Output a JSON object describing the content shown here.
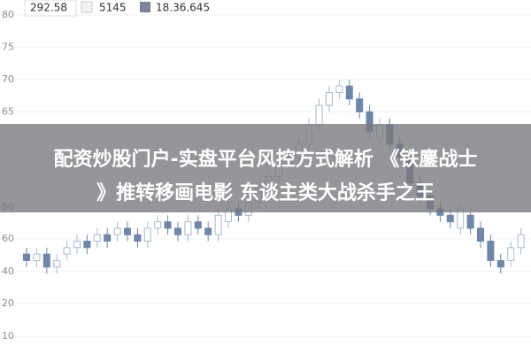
{
  "legend": [
    "292.58",
    "5145",
    "18.36.645"
  ],
  "banner": {
    "line1": "配资炒股门户-实盘平台风控方式解析 《铁鏖战士",
    "line2": "》推转移画电影 东谈主类大战杀手之王"
  },
  "lower_axis_labels": [
    "80",
    "60",
    "40",
    "20",
    "10"
  ],
  "chart_data": {
    "type": "candlestick",
    "ylim": [
      38.5,
      82.3
    ],
    "yticks": [
      80,
      75,
      70,
      65
    ],
    "up_color": "#a9b8cf",
    "down_color": "#6f86a8",
    "open": [
      43,
      42,
      43,
      41,
      43,
      44,
      45,
      45,
      46,
      46,
      47,
      46,
      45,
      47,
      48,
      47,
      46,
      48,
      47,
      46,
      48,
      50,
      49,
      51,
      53,
      55,
      57,
      58,
      60,
      63,
      66,
      68,
      69,
      67,
      65,
      61,
      63,
      60,
      58,
      54,
      52,
      50,
      49,
      47,
      49,
      47,
      45,
      42,
      42,
      44
    ],
    "close": [
      42,
      43,
      41,
      42,
      44,
      45,
      44,
      46,
      45,
      47,
      46,
      45,
      47,
      48,
      47,
      46,
      48,
      47,
      46,
      49,
      50,
      49,
      51,
      53,
      55,
      57,
      58,
      60,
      63,
      66,
      68,
      69,
      67,
      65,
      62,
      63,
      60,
      58,
      54,
      52,
      50,
      49,
      48,
      50,
      47,
      45,
      42,
      41,
      44,
      46
    ],
    "high": [
      44,
      44,
      44,
      43,
      45,
      46,
      46,
      47,
      47,
      48,
      48,
      47,
      48,
      49,
      49,
      48,
      49,
      49,
      48,
      50,
      51,
      51,
      52,
      54,
      56,
      58,
      59,
      61,
      64,
      67,
      69,
      70,
      70,
      68,
      66,
      64,
      64,
      61,
      59,
      55,
      53,
      51,
      50,
      51,
      50,
      48,
      46,
      43,
      45,
      47
    ],
    "low": [
      41,
      41,
      40,
      40,
      42,
      43,
      43,
      44,
      44,
      45,
      45,
      44,
      44,
      46,
      46,
      45,
      45,
      46,
      45,
      45,
      47,
      48,
      48,
      50,
      52,
      54,
      56,
      57,
      59,
      62,
      65,
      67,
      66,
      64,
      61,
      60,
      59,
      57,
      53,
      51,
      49,
      48,
      47,
      46,
      46,
      44,
      41,
      40,
      41,
      43
    ]
  }
}
